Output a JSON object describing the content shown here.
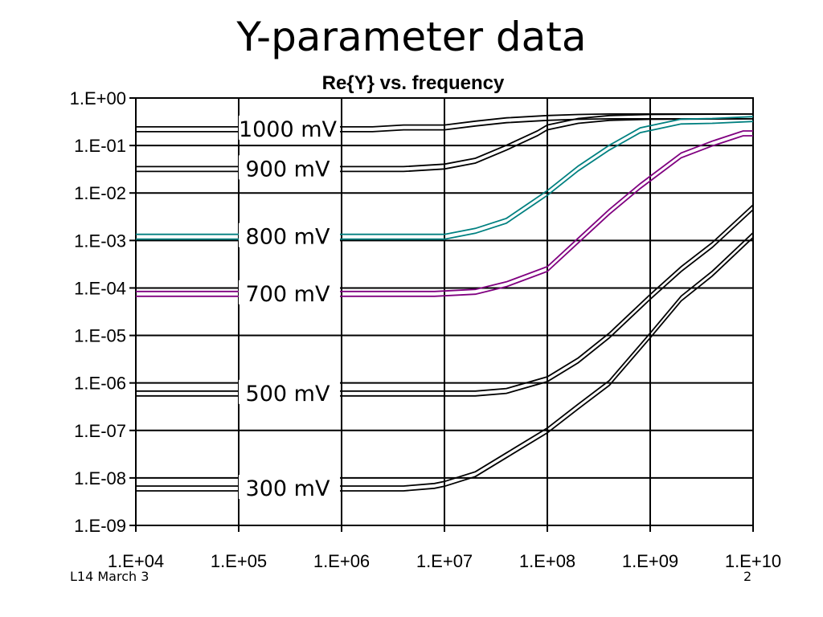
{
  "slide": {
    "title": "Y-parameter data",
    "footer_left": "L14 March 3",
    "footer_right": "2"
  },
  "chart_data": {
    "type": "line",
    "title": "Re{Y} vs. frequency",
    "xlabel": "",
    "ylabel": "",
    "xscale": "log",
    "yscale": "log",
    "xlim": [
      10000,
      10000000000
    ],
    "ylim": [
      1e-09,
      1
    ],
    "grid": true,
    "x_ticks": [
      "1.E+04",
      "1.E+05",
      "1.E+06",
      "1.E+07",
      "1.E+08",
      "1.E+09",
      "1.E+10"
    ],
    "y_ticks": [
      "1.E+00",
      "1.E-01",
      "1.E-02",
      "1.E-03",
      "1.E-04",
      "1.E-05",
      "1.E-06",
      "1.E-07",
      "1.E-08",
      "1.E-09"
    ],
    "colors": {
      "300 mV": "#000000",
      "500 mV": "#000000",
      "700 mV": "#800080",
      "800 mV": "#008080",
      "900 mV": "#000000",
      "1000 mV": "#000000"
    },
    "series": [
      {
        "name": "1000 mV",
        "x": [
          10000,
          100000,
          1000000,
          2000000,
          4000000,
          10000000,
          20000000,
          40000000,
          100000000,
          200000000,
          400000000,
          1000000000,
          10000000000
        ],
        "y": [
          0.22,
          0.22,
          0.22,
          0.22,
          0.24,
          0.24,
          0.29,
          0.34,
          0.38,
          0.4,
          0.41,
          0.41,
          0.41
        ]
      },
      {
        "name": "900 mV",
        "x": [
          10000,
          100000,
          1000000,
          4000000,
          10000000,
          20000000,
          40000000,
          80000000,
          100000000,
          200000000,
          400000000,
          1000000000,
          10000000000
        ],
        "y": [
          0.032,
          0.032,
          0.032,
          0.032,
          0.036,
          0.048,
          0.09,
          0.18,
          0.24,
          0.33,
          0.38,
          0.4,
          0.41
        ]
      },
      {
        "name": "800 mV",
        "x": [
          10000,
          100000,
          1000000,
          10000000,
          20000000,
          40000000,
          100000000,
          200000000,
          400000000,
          800000000,
          2000000000,
          4000000000,
          10000000000
        ],
        "y": [
          0.0012,
          0.0012,
          0.0012,
          0.0012,
          0.0016,
          0.0026,
          0.01,
          0.033,
          0.09,
          0.21,
          0.32,
          0.33,
          0.36
        ]
      },
      {
        "name": "700 mV",
        "x": [
          10000,
          100000,
          1000000,
          8000000,
          20000000,
          40000000,
          100000000,
          200000000,
          400000000,
          800000000,
          2000000000,
          4000000000,
          8000000000,
          10000000000
        ],
        "y": [
          7.5e-05,
          7.5e-05,
          7.5e-05,
          7.5e-05,
          8.3e-05,
          0.00012,
          0.00025,
          0.001,
          0.004,
          0.014,
          0.062,
          0.11,
          0.18,
          0.18
        ]
      },
      {
        "name": "500 mV",
        "x": [
          10000,
          100000,
          1000000,
          10000000,
          20000000,
          40000000,
          100000000,
          200000000,
          400000000,
          1000000000,
          2000000000,
          4000000000,
          10000000000
        ],
        "y": [
          6e-07,
          6e-07,
          6e-07,
          6e-07,
          6e-07,
          6.8e-07,
          1.2e-06,
          3e-06,
          1e-05,
          6.5e-05,
          0.00025,
          0.0008,
          0.005
        ]
      },
      {
        "name": "300 mV",
        "x": [
          10000,
          100000,
          1000000,
          4000000,
          8000000,
          10000000,
          20000000,
          40000000,
          100000000,
          200000000,
          400000000,
          1000000000,
          2000000000,
          4000000000,
          10000000000
        ],
        "y": [
          6e-09,
          6e-09,
          6e-09,
          6e-09,
          6.8e-09,
          7.5e-09,
          1.2e-08,
          3e-08,
          1e-07,
          3.2e-07,
          1e-06,
          1e-05,
          6e-05,
          0.0002,
          0.0013
        ]
      }
    ]
  }
}
